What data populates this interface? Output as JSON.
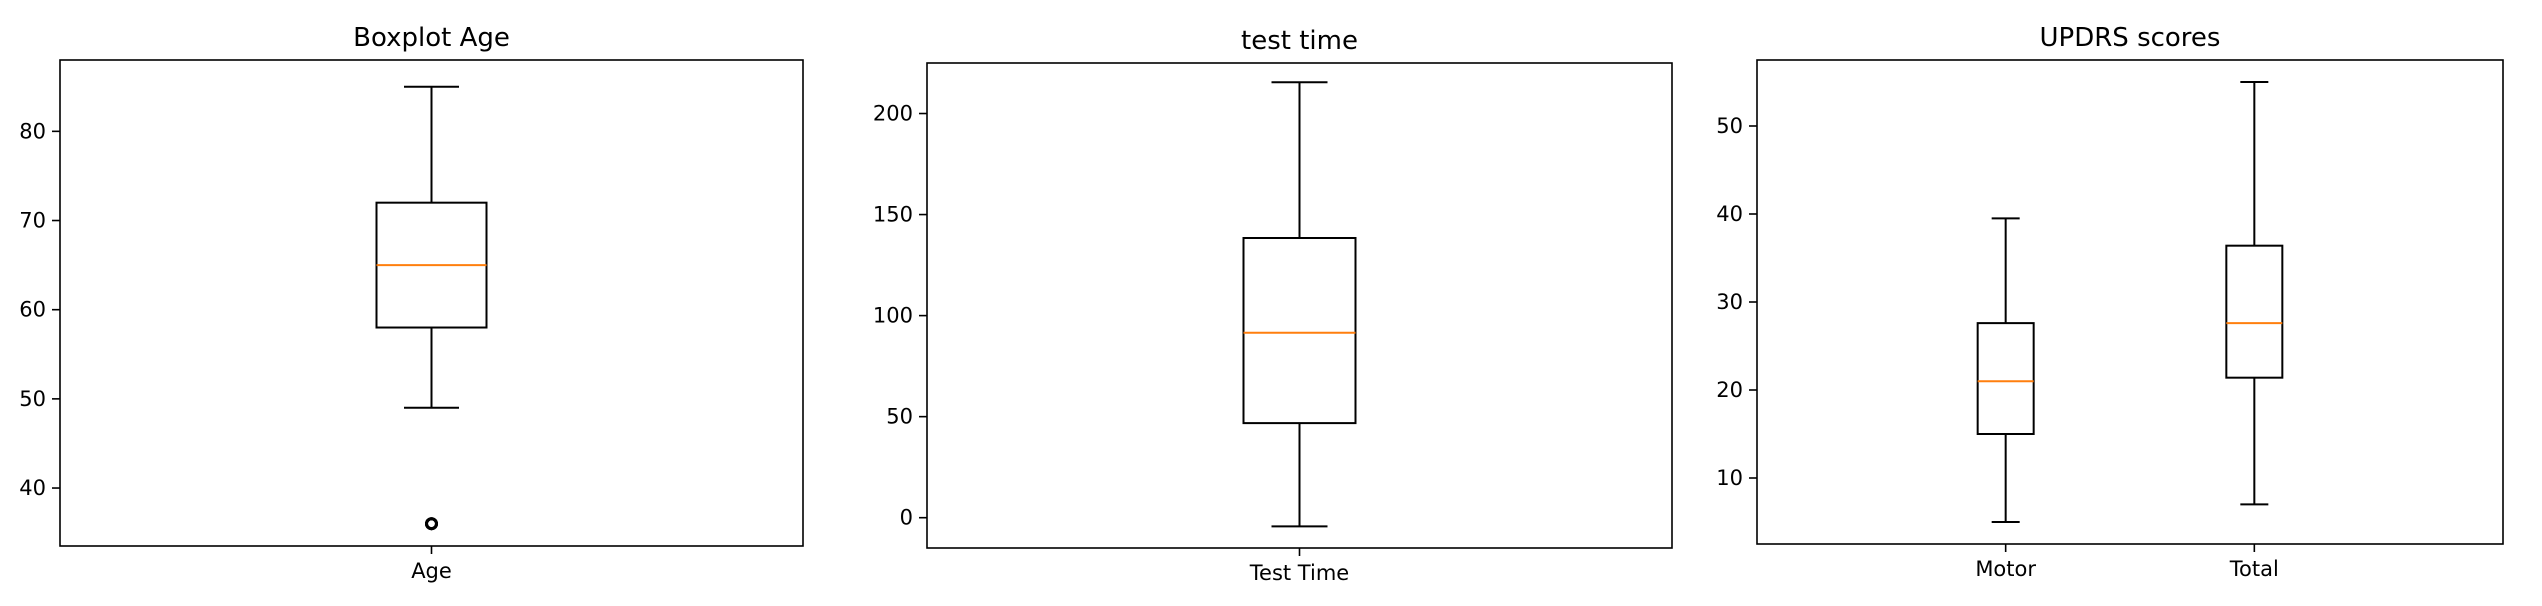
{
  "chart_data": [
    {
      "type": "boxplot",
      "title": "Boxplot Age",
      "categories": [
        "Age"
      ],
      "ylim": [
        33.5,
        88
      ],
      "yticks": [
        40,
        50,
        60,
        70,
        80
      ],
      "boxes": [
        {
          "label": "Age",
          "whislo": 49,
          "q1": 58,
          "med": 65,
          "q3": 72,
          "whishi": 85,
          "fliers": [
            36,
            36,
            36
          ]
        }
      ],
      "median_color": "#ff7f0e"
    },
    {
      "type": "boxplot",
      "title": "test time",
      "categories": [
        "Test Time"
      ],
      "ylim": [
        -15,
        225
      ],
      "yticks": [
        0,
        50,
        100,
        150,
        200
      ],
      "boxes": [
        {
          "label": "Test Time",
          "whislo": -4.3,
          "q1": 46.8,
          "med": 91.5,
          "q3": 138.4,
          "whishi": 215.5,
          "fliers": []
        }
      ],
      "median_color": "#ff7f0e"
    },
    {
      "type": "boxplot",
      "title": "UPDRS scores",
      "categories": [
        "Motor",
        "Total"
      ],
      "ylim": [
        2.5,
        57.5
      ],
      "yticks": [
        10,
        20,
        30,
        40,
        50
      ],
      "boxes": [
        {
          "label": "Motor",
          "whislo": 5.0,
          "q1": 15.0,
          "med": 21.0,
          "q3": 27.6,
          "whishi": 39.5,
          "fliers": []
        },
        {
          "label": "Total",
          "whislo": 7.0,
          "q1": 21.4,
          "med": 27.6,
          "q3": 36.4,
          "whishi": 55.0,
          "fliers": []
        }
      ],
      "median_color": "#ff7f0e"
    }
  ]
}
